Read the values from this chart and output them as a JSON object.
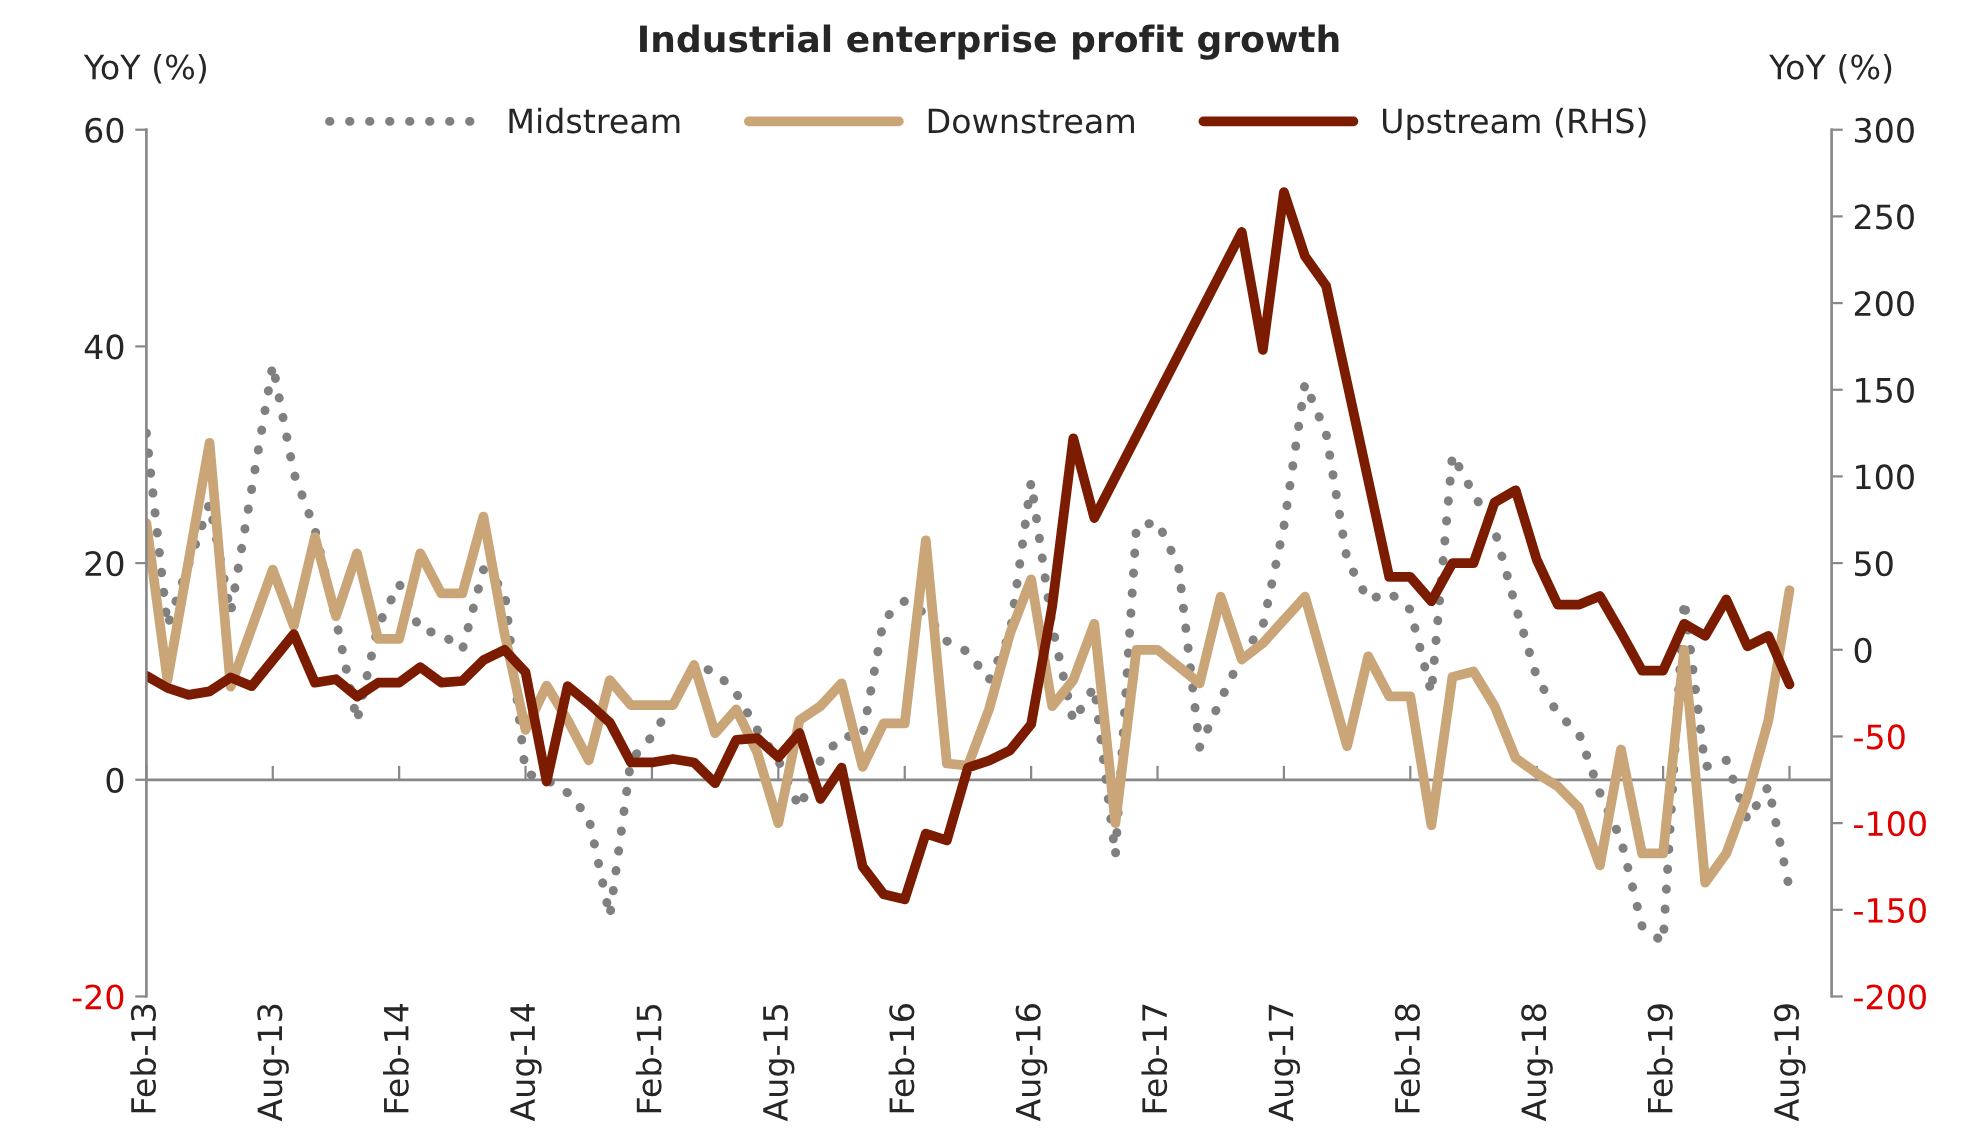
{
  "chart_data": {
    "type": "line",
    "title": "Industrial enterprise profit growth",
    "ylabel": "YoY (%)",
    "y2label": "YoY (%)",
    "xlim": [
      "2013-02",
      "2019-10"
    ],
    "xticks": [
      {
        "value": "2013-02",
        "label": "Feb-13"
      },
      {
        "value": "2013-08",
        "label": "Aug-13"
      },
      {
        "value": "2014-02",
        "label": "Feb-14"
      },
      {
        "value": "2014-08",
        "label": "Aug-14"
      },
      {
        "value": "2015-02",
        "label": "Feb-15"
      },
      {
        "value": "2015-08",
        "label": "Aug-15"
      },
      {
        "value": "2016-02",
        "label": "Feb-16"
      },
      {
        "value": "2016-08",
        "label": "Aug-16"
      },
      {
        "value": "2017-02",
        "label": "Feb-17"
      },
      {
        "value": "2017-08",
        "label": "Aug-17"
      },
      {
        "value": "2018-02",
        "label": "Feb-18"
      },
      {
        "value": "2018-08",
        "label": "Aug-18"
      },
      {
        "value": "2019-02",
        "label": "Feb-19"
      },
      {
        "value": "2019-08",
        "label": "Aug-19"
      }
    ],
    "ylim": [
      -20,
      60
    ],
    "yticks": [
      -20,
      0,
      20,
      40,
      60
    ],
    "y2lim": [
      -200,
      300
    ],
    "y2ticks": [
      -200,
      -150,
      -100,
      -50,
      0,
      50,
      100,
      150,
      200,
      250,
      300
    ],
    "legend": "top",
    "grid": false,
    "ref_lines": [
      {
        "axis": "y",
        "value": 0,
        "color": "#888888"
      }
    ],
    "series": [
      {
        "name": "Midstream",
        "color": "#808080",
        "line_style": "dotted",
        "x": [
          "2013-02",
          "2013-03",
          "2013-05",
          "2013-06",
          "2013-08",
          "2013-09",
          "2013-10",
          "2013-11",
          "2013-12",
          "2014-01",
          "2014-02",
          "2014-03",
          "2014-04",
          "2014-05",
          "2014-06",
          "2014-07",
          "2014-08",
          "2014-09",
          "2014-10",
          "2014-11",
          "2014-12",
          "2015-01",
          "2015-02",
          "2015-03",
          "2015-04",
          "2015-05",
          "2015-06",
          "2015-07",
          "2015-08",
          "2015-09",
          "2015-10",
          "2015-11",
          "2015-12",
          "2016-01",
          "2016-02",
          "2016-03",
          "2016-04",
          "2016-05",
          "2016-06",
          "2016-07",
          "2016-08",
          "2016-09",
          "2016-10",
          "2016-11",
          "2016-12",
          "2017-01",
          "2017-02",
          "2017-03",
          "2017-04",
          "2017-05",
          "2017-06",
          "2017-07",
          "2017-08",
          "2017-09",
          "2017-10",
          "2017-11",
          "2017-12",
          "2018-01",
          "2018-02",
          "2018-03",
          "2018-04",
          "2018-05",
          "2018-06",
          "2018-07",
          "2018-08",
          "2018-09",
          "2018-10",
          "2018-11",
          "2018-12",
          "2019-01",
          "2019-02",
          "2019-03",
          "2019-04",
          "2019-05",
          "2019-06",
          "2019-07",
          "2019-08"
        ],
        "values": [
          32.0,
          14.2,
          25.5,
          15.4,
          38.3,
          28.3,
          23.1,
          14.8,
          5.4,
          14.2,
          18.1,
          13.8,
          13.5,
          12.0,
          19.4,
          17.5,
          0.6,
          0,
          -1.2,
          -3.5,
          -12.6,
          1.8,
          4.0,
          7.1,
          10.5,
          10.0,
          8.0,
          4.6,
          1.8,
          -2.6,
          1.8,
          4.0,
          4.0,
          14.8,
          16.5,
          15.3,
          12.8,
          11.8,
          9.2,
          13.5,
          27.5,
          14.2,
          5.4,
          8.6,
          -7.0,
          23.4,
          23.8,
          19.7,
          3.0,
          7.4,
          11.4,
          14.2,
          23.4,
          36.6,
          32.0,
          20.3,
          16.6,
          17.3,
          15.7,
          8.0,
          30.0,
          26.4,
          23.1,
          16.0,
          9.5,
          6.1,
          4.3,
          -1.2,
          -5.5,
          -13.5,
          -15.0,
          16.6,
          1.2,
          1.8,
          -3.7,
          -0.6,
          -10.1
        ]
      },
      {
        "name": "Downstream",
        "color": "#c9a578",
        "line_style": "solid",
        "x": [
          "2013-02",
          "2013-03",
          "2013-05",
          "2013-06",
          "2013-08",
          "2013-09",
          "2013-10",
          "2013-11",
          "2013-12",
          "2014-01",
          "2014-02",
          "2014-03",
          "2014-04",
          "2014-05",
          "2014-06",
          "2014-07",
          "2014-08",
          "2014-09",
          "2014-10",
          "2014-11",
          "2014-12",
          "2015-01",
          "2015-02",
          "2015-03",
          "2015-04",
          "2015-05",
          "2015-06",
          "2015-07",
          "2015-08",
          "2015-09",
          "2015-10",
          "2015-11",
          "2015-12",
          "2016-01",
          "2016-02",
          "2016-03",
          "2016-04",
          "2016-05",
          "2016-06",
          "2016-07",
          "2016-08",
          "2016-09",
          "2016-10",
          "2016-11",
          "2016-12",
          "2017-01",
          "2017-02",
          "2017-04",
          "2017-05",
          "2017-06",
          "2017-07",
          "2017-09",
          "2017-11",
          "2017-12",
          "2018-01",
          "2018-02",
          "2018-03",
          "2018-04",
          "2018-05",
          "2018-06",
          "2018-07",
          "2018-08",
          "2018-09",
          "2018-10",
          "2018-11",
          "2018-12",
          "2019-01",
          "2019-02",
          "2019-03",
          "2019-04",
          "2019-05",
          "2019-06",
          "2019-07",
          "2019-08"
        ],
        "values": [
          23.7,
          9.2,
          31.1,
          8.6,
          19.4,
          14.2,
          22.4,
          15.1,
          20.9,
          13.0,
          13.0,
          20.9,
          17.2,
          17.2,
          24.3,
          13.5,
          4.6,
          8.7,
          5.5,
          1.8,
          9.2,
          6.9,
          6.9,
          6.9,
          10.6,
          4.3,
          6.5,
          2.5,
          -4.0,
          5.5,
          6.8,
          8.9,
          1.2,
          5.2,
          5.2,
          22.1,
          1.5,
          1.3,
          6.5,
          13.5,
          18.5,
          6.8,
          9.2,
          14.4,
          -4.0,
          12.0,
          12.0,
          8.9,
          16.9,
          11.1,
          12.6,
          16.9,
          3.1,
          11.4,
          7.7,
          7.7,
          -4.2,
          9.5,
          10.0,
          6.8,
          2.0,
          0.6,
          -0.6,
          -2.6,
          -7.9,
          2.8,
          -6.8,
          -6.8,
          12.0,
          -9.5,
          -6.8,
          -1.5,
          5.5,
          17.5
        ]
      },
      {
        "name": "Upstream (RHS)",
        "color": "#7b1c00",
        "line_style": "solid",
        "axis": "y2",
        "x": [
          "2013-02",
          "2013-03",
          "2013-04",
          "2013-05",
          "2013-06",
          "2013-07",
          "2013-08",
          "2013-09",
          "2013-10",
          "2013-11",
          "2013-12",
          "2014-01",
          "2014-02",
          "2014-03",
          "2014-04",
          "2014-05",
          "2014-06",
          "2014-07",
          "2014-08",
          "2014-09",
          "2014-10",
          "2014-11",
          "2014-12",
          "2015-01",
          "2015-02",
          "2015-03",
          "2015-04",
          "2015-05",
          "2015-06",
          "2015-07",
          "2015-08",
          "2015-09",
          "2015-10",
          "2015-11",
          "2015-12",
          "2016-01",
          "2016-02",
          "2016-03",
          "2016-04",
          "2016-05",
          "2016-06",
          "2016-07",
          "2016-08",
          "2016-09",
          "2016-10",
          "2016-11",
          "2017-06",
          "2017-07",
          "2017-08",
          "2017-09",
          "2017-10",
          "2018-01",
          "2018-02",
          "2018-03",
          "2018-04",
          "2018-05",
          "2018-06",
          "2018-07",
          "2018-08",
          "2018-09",
          "2018-10",
          "2018-11",
          "2018-12",
          "2019-01",
          "2019-02",
          "2019-03",
          "2019-04",
          "2019-05",
          "2019-06",
          "2019-07",
          "2019-08"
        ],
        "values": [
          -15,
          -22,
          -26,
          -24,
          -16,
          -21,
          -6,
          9,
          -19,
          -17,
          -27,
          -19,
          -19,
          -10,
          -19,
          -18,
          -6,
          0,
          -13,
          -76,
          -21,
          -31,
          -42,
          -65,
          -65,
          -63,
          -65,
          -77,
          -52,
          -51,
          -62,
          -48,
          -86,
          -68,
          -125,
          -141,
          -144,
          -106,
          -110,
          -68,
          -64,
          -58,
          -43,
          25,
          122,
          76,
          241,
          173,
          264,
          227,
          210,
          42,
          42,
          28,
          50,
          50,
          85,
          92,
          52,
          26,
          26,
          31,
          10,
          -12,
          -12,
          15,
          8,
          29,
          2,
          8,
          -20
        ]
      }
    ]
  }
}
